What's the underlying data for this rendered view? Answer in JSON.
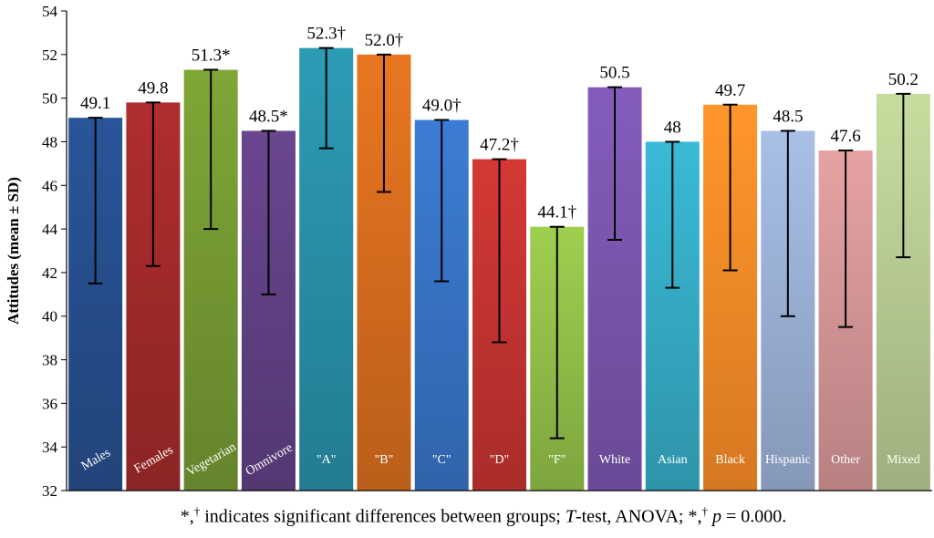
{
  "chart_data": {
    "type": "bar",
    "title": "",
    "xlabel": "",
    "ylabel": "Attitudes (mean ± SD)",
    "ylim": [
      32,
      54
    ],
    "yticks": [
      32,
      34,
      36,
      38,
      40,
      42,
      44,
      46,
      48,
      50,
      52,
      54
    ],
    "grid": false,
    "categories": [
      "Males",
      "Females",
      "Vegetarian",
      "Omnivore",
      "\"A\"",
      "\"B\"",
      "\"C\"",
      "\"D\"",
      "\"F\"",
      "White",
      "Asian",
      "Black",
      "Hispanic",
      "Other",
      "Mixed"
    ],
    "values": [
      49.1,
      49.8,
      51.3,
      48.5,
      52.3,
      52.0,
      49.0,
      47.2,
      44.1,
      50.5,
      48,
      49.7,
      48.5,
      47.6,
      50.2
    ],
    "data_labels": [
      "49.1",
      "49.8",
      "51.3*",
      "48.5*",
      "52.3†",
      "52.0†",
      "49.0†",
      "47.2†",
      "44.1†",
      "50.5",
      "48",
      "49.7",
      "48.5",
      "47.6",
      "50.2"
    ],
    "error_low": [
      41.5,
      42.3,
      44.0,
      41.0,
      47.7,
      45.7,
      41.6,
      38.8,
      34.4,
      43.5,
      41.3,
      42.1,
      40.0,
      39.5,
      42.7
    ],
    "error_high": [
      49.1,
      49.8,
      51.3,
      48.5,
      52.3,
      52.0,
      49.0,
      47.2,
      44.1,
      50.5,
      48,
      49.7,
      48.5,
      47.6,
      50.2
    ],
    "colors": [
      "#264f8e",
      "#a22b2a",
      "#769a33",
      "#614184",
      "#2990a8",
      "#d86d1e",
      "#3874c5",
      "#c43431",
      "#93c049",
      "#7a56ae",
      "#36acc6",
      "#f98b28",
      "#9cb1d6",
      "#d59697",
      "#b8cd93"
    ]
  },
  "footnote": {
    "prefix": "*,",
    "sup1": "†",
    "text1": " indicates significant differences between groups; ",
    "t_italic": "T",
    "text2": "-test, ANOVA; *,",
    "sup2": "†",
    "p_italic": "p",
    "text3": " = 0.000."
  }
}
